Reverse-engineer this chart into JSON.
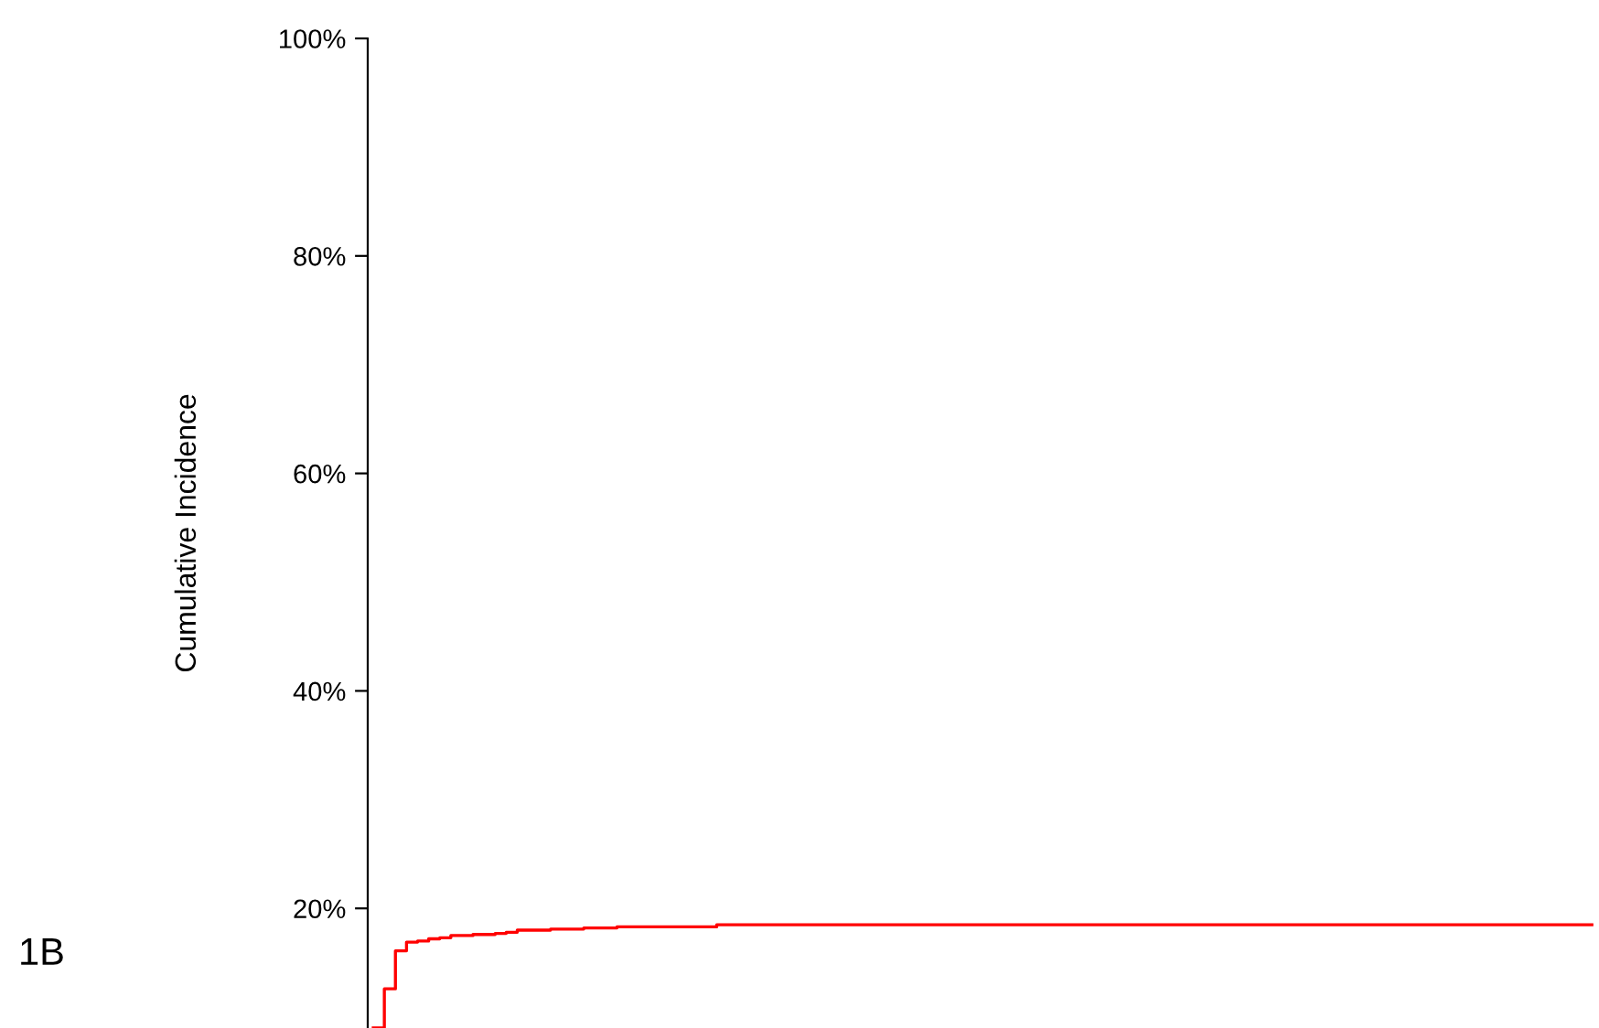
{
  "chart_data": {
    "type": "step",
    "ylabel": "Cumulative Incidence",
    "annotations": [
      "1B"
    ],
    "categories": [
      null,
      null,
      null,
      null,
      null,
      null,
      null,
      null,
      null,
      null,
      null,
      null,
      null,
      null,
      null,
      null,
      null,
      null,
      null,
      null,
      null,
      null,
      null,
      null,
      null,
      null,
      null,
      null,
      null,
      null,
      null,
      null,
      null,
      null,
      null,
      null,
      null,
      null,
      null,
      null,
      null,
      null,
      null,
      null,
      null,
      null,
      null,
      null,
      null,
      null,
      null,
      null,
      null,
      null,
      null,
      null,
      null,
      null,
      null,
      null,
      null,
      null,
      null,
      null,
      null,
      null,
      null,
      null,
      null,
      null,
      null,
      null,
      null,
      null,
      null,
      null,
      null,
      null,
      null,
      null,
      null,
      null,
      null,
      null,
      null,
      null,
      null,
      null,
      null,
      null,
      null,
      null,
      null,
      null,
      null,
      null,
      null,
      null,
      null,
      null,
      null,
      null,
      null,
      null,
      null,
      null,
      null,
      null,
      null,
      null,
      null
    ],
    "series": [
      {
        "color": "#ff0000",
        "values": [
          9.0,
          12.6,
          16.1,
          16.9,
          17.0,
          17.2,
          17.3,
          17.5,
          17.5,
          17.6,
          17.6,
          17.7,
          17.8,
          18.0,
          18.0,
          18.0,
          18.1,
          18.1,
          18.1,
          18.2,
          18.2,
          18.2,
          18.3,
          18.3,
          18.3,
          18.3,
          18.3,
          18.3,
          18.3,
          18.3,
          18.3,
          18.5,
          18.5,
          18.5,
          18.5,
          18.5,
          18.5,
          18.5,
          18.5,
          18.5,
          18.5,
          18.5,
          18.5,
          18.5,
          18.5,
          18.5,
          18.5,
          18.5,
          18.5,
          18.5,
          18.5,
          18.5,
          18.5,
          18.5,
          18.5,
          18.5,
          18.5,
          18.5,
          18.5,
          18.5,
          18.5,
          18.5,
          18.5,
          18.5,
          18.5,
          18.5,
          18.5,
          18.5,
          18.5,
          18.5,
          18.5,
          18.5,
          18.5,
          18.5,
          18.5,
          18.5,
          18.5,
          18.5,
          18.5,
          18.5,
          18.5,
          18.5,
          18.5,
          18.5,
          18.5,
          18.5,
          18.5,
          18.5,
          18.5,
          18.5,
          18.5,
          18.5,
          18.5,
          18.5,
          18.5,
          18.5,
          18.5,
          18.5,
          18.5,
          18.5,
          18.5,
          18.5,
          18.5,
          18.5,
          18.5,
          18.5,
          18.5,
          18.5,
          18.5,
          18.5,
          18.5
        ]
      }
    ],
    "ylim": [
      9,
      100
    ],
    "yticks": [
      {
        "value": 20,
        "label": "20%"
      },
      {
        "value": 40,
        "label": "40%"
      },
      {
        "value": 60,
        "label": "60%"
      },
      {
        "value": 80,
        "label": "80%"
      },
      {
        "value": 100,
        "label": "100%"
      }
    ],
    "tick_labels": "y",
    "grid": false,
    "legend": false
  }
}
